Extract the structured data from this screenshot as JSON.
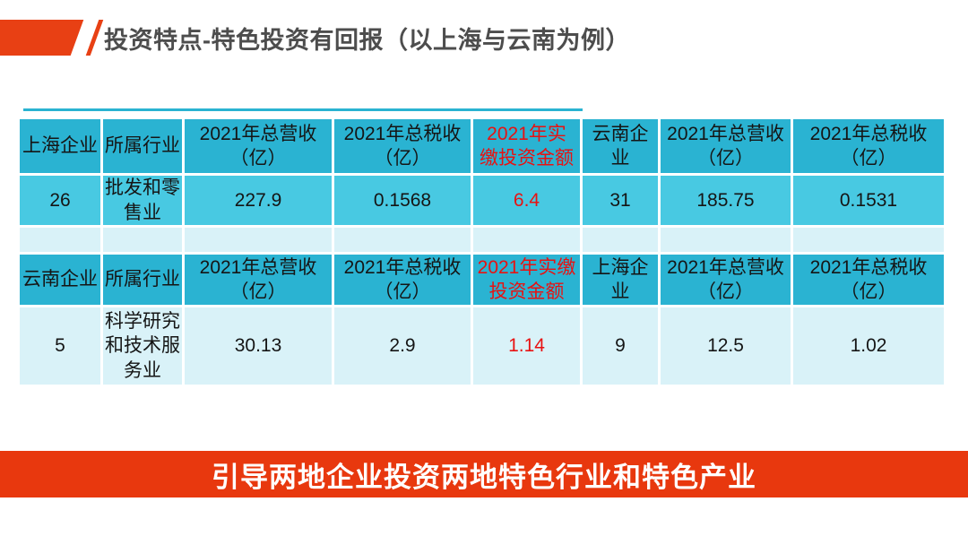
{
  "slide": {
    "title": "投资特点-特色投资有回报（以上海与云南为例）",
    "banner": "引导两地企业投资两地特色行业和特色产业"
  },
  "colors": {
    "accent_red": "#e84014",
    "banner_red": "#e8380e",
    "table_header_cyan": "#2ab3d2",
    "table_row_cyan": "#48c9e2",
    "table_light_cyan": "#d9f2f8",
    "highlight_red_text": "#e81212",
    "title_gray": "#4d4d4d"
  },
  "table1": {
    "headers": [
      "上海企业",
      "所属行业",
      "2021年总营收\n（亿）",
      "2021年总税收\n（亿）",
      "2021年实\n缴投资金额",
      "云南企\n业",
      "2021年总营收\n（亿）",
      "2021年总税收\n（亿）"
    ],
    "row": [
      "26",
      "批发和零\n售业",
      "227.9",
      "0.1568",
      "6.4",
      "31",
      "185.75",
      "0.1531"
    ]
  },
  "table2": {
    "headers": [
      "云南企业",
      "所属行业",
      "2021年总营收\n（亿）",
      "2021年总税收\n（亿）",
      "2021年实缴\n投资金额",
      "上海企\n业",
      "2021年总营收\n（亿）",
      "2021年总税收\n（亿）"
    ],
    "row": [
      "5",
      "科学研究\n和技术服\n务业",
      "30.13",
      "2.9",
      "1.14",
      "9",
      "12.5",
      "1.02"
    ]
  }
}
